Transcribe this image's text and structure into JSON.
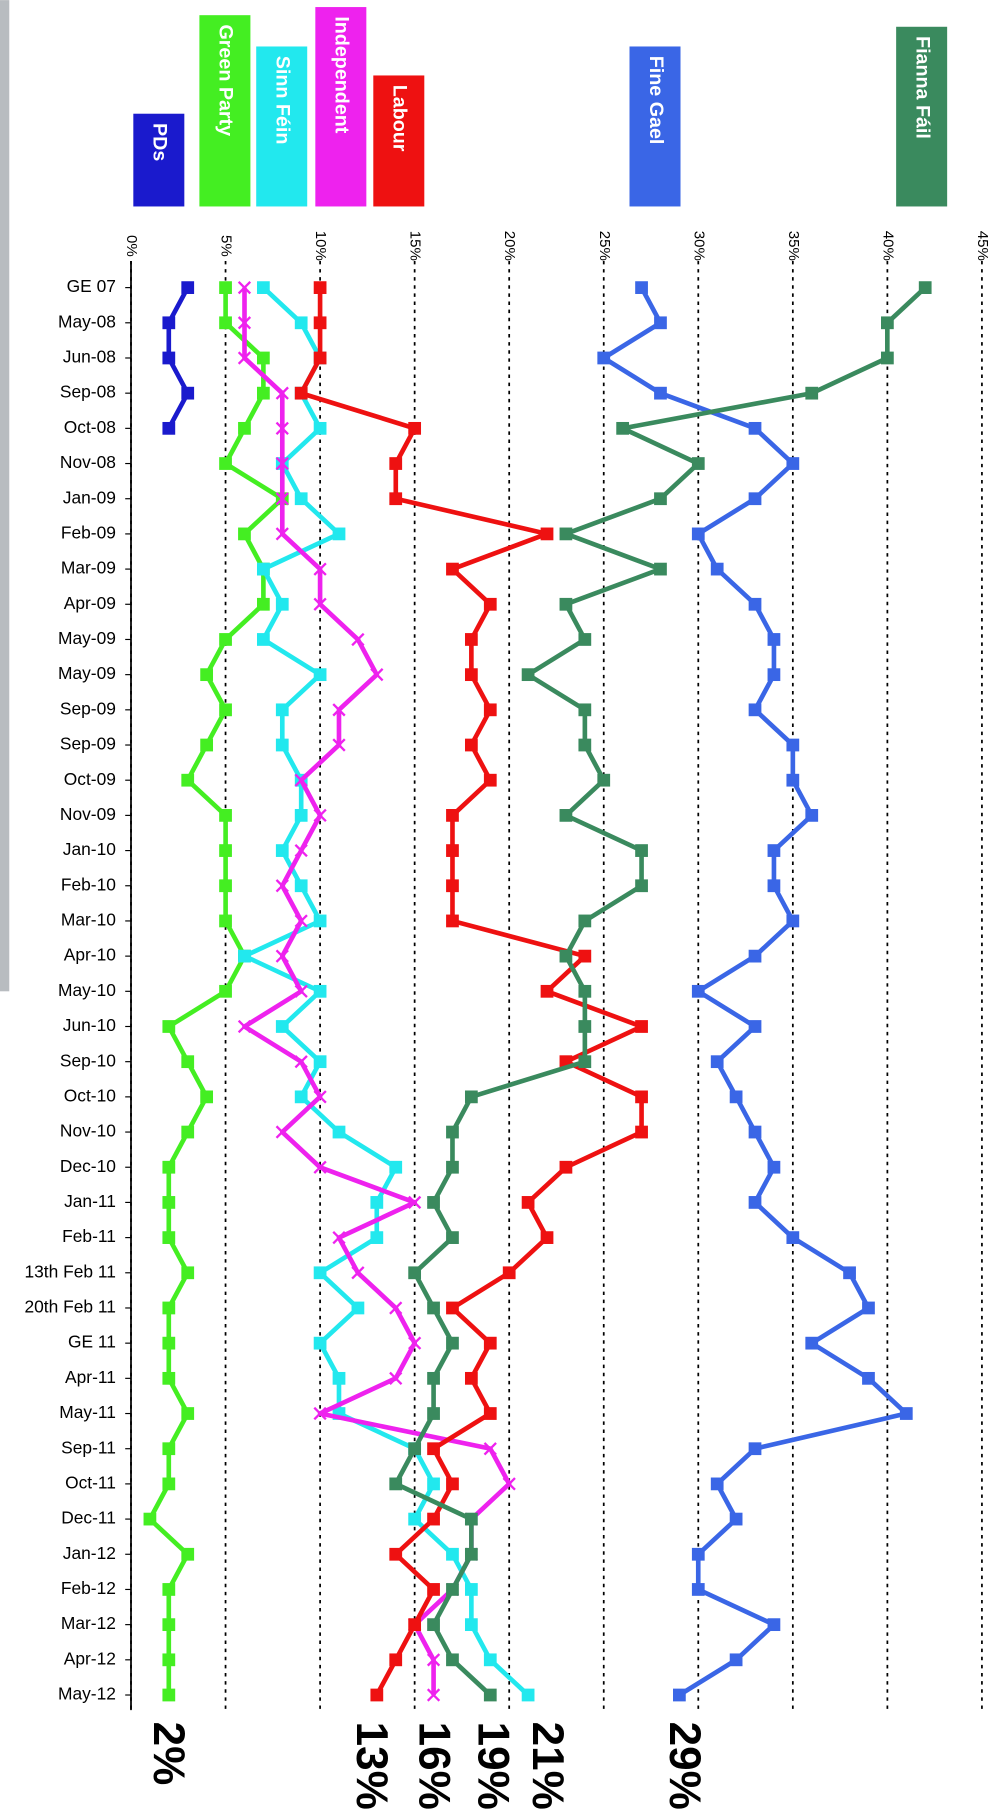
{
  "chart_data": {
    "type": "line",
    "categories": [
      "GE 07",
      "May-08",
      "Jun-08",
      "Sep-08",
      "Oct-08",
      "Nov-08",
      "Jan-09",
      "Feb-09",
      "Mar-09",
      "Apr-09",
      "May-09",
      "May-09",
      "Sep-09",
      "Sep-09",
      "Oct-09",
      "Nov-09",
      "Jan-10",
      "Feb-10",
      "Mar-10",
      "Apr-10",
      "May-10",
      "Jun-10",
      "Sep-10",
      "Oct-10",
      "Nov-10",
      "Dec-10",
      "Jan-11",
      "Feb-11",
      "13th Feb 11",
      "20th Feb 11",
      "GE 11",
      "Apr-11",
      "May-11",
      "Sep-11",
      "Oct-11",
      "Dec-11",
      "Jan-12",
      "Feb-12",
      "Mar-12",
      "Apr-12",
      "May-12"
    ],
    "series": [
      {
        "name": "PDs",
        "color": "#1a1acd",
        "marker": "square",
        "values": [
          3,
          2,
          2,
          3,
          2,
          null,
          null,
          null,
          null,
          null,
          null,
          null,
          null,
          null,
          null,
          null,
          null,
          null,
          null,
          null,
          null,
          null,
          null,
          null,
          null,
          null,
          null,
          null,
          null,
          null,
          null,
          null,
          null,
          null,
          null,
          null,
          null,
          null,
          null,
          null,
          null
        ]
      },
      {
        "name": "Green Party",
        "color": "#44ee22",
        "marker": "square",
        "values": [
          5,
          5,
          7,
          7,
          6,
          5,
          8,
          6,
          7,
          7,
          5,
          4,
          5,
          4,
          3,
          5,
          5,
          5,
          5,
          6,
          5,
          2,
          3,
          4,
          3,
          2,
          2,
          2,
          3,
          2,
          2,
          2,
          3,
          2,
          2,
          1,
          3,
          2,
          2,
          2,
          2
        ]
      },
      {
        "name": "Sinn Féin",
        "color": "#22e8ee",
        "marker": "square",
        "values": [
          7,
          9,
          10,
          9,
          10,
          8,
          9,
          11,
          7,
          8,
          7,
          10,
          8,
          8,
          9,
          9,
          8,
          9,
          10,
          6,
          10,
          8,
          10,
          9,
          11,
          14,
          13,
          13,
          10,
          12,
          10,
          11,
          11,
          15,
          16,
          15,
          17,
          18,
          18,
          19,
          21
        ]
      },
      {
        "name": "Independent",
        "color": "#ee22ee",
        "marker": "cross",
        "values": [
          6,
          6,
          6,
          8,
          8,
          8,
          8,
          8,
          10,
          10,
          12,
          13,
          11,
          11,
          9,
          10,
          9,
          8,
          9,
          8,
          9,
          6,
          9,
          10,
          8,
          10,
          15,
          11,
          12,
          14,
          15,
          14,
          10,
          19,
          20,
          18,
          18,
          17,
          15,
          16,
          16
        ]
      },
      {
        "name": "Labour",
        "color": "#ee1111",
        "marker": "square",
        "values": [
          10,
          10,
          10,
          9,
          15,
          14,
          14,
          22,
          17,
          19,
          18,
          18,
          19,
          18,
          19,
          17,
          17,
          17,
          17,
          24,
          22,
          27,
          23,
          27,
          27,
          23,
          21,
          22,
          20,
          17,
          19,
          18,
          19,
          16,
          17,
          16,
          14,
          16,
          15,
          14,
          13
        ]
      },
      {
        "name": "Fine Gael",
        "color": "#3a66e6",
        "marker": "square",
        "values": [
          27,
          28,
          25,
          28,
          33,
          35,
          33,
          30,
          31,
          33,
          34,
          34,
          33,
          35,
          35,
          36,
          34,
          34,
          35,
          33,
          30,
          33,
          31,
          32,
          33,
          34,
          33,
          35,
          38,
          39,
          36,
          39,
          41,
          33,
          31,
          32,
          30,
          30,
          34,
          32,
          29
        ]
      },
      {
        "name": "Fianna Fáil",
        "color": "#3a8a5e",
        "marker": "square",
        "values": [
          42,
          40,
          40,
          36,
          26,
          30,
          28,
          23,
          28,
          23,
          24,
          21,
          24,
          24,
          25,
          23,
          27,
          27,
          24,
          23,
          24,
          24,
          24,
          18,
          17,
          17,
          16,
          17,
          15,
          16,
          17,
          16,
          16,
          15,
          14,
          18,
          18,
          17,
          16,
          17,
          19
        ]
      }
    ],
    "xlim": [
      0,
      45
    ],
    "xticks": [
      {
        "value": 0,
        "label": "0%"
      },
      {
        "value": 5,
        "label": "5%"
      },
      {
        "value": 10,
        "label": "10%"
      },
      {
        "value": 15,
        "label": "15%"
      },
      {
        "value": 20,
        "label": "20%"
      },
      {
        "value": 25,
        "label": "25%"
      },
      {
        "value": 30,
        "label": "30%"
      },
      {
        "value": 35,
        "label": "35%"
      },
      {
        "value": 40,
        "label": "40%"
      },
      {
        "value": 45,
        "label": "45%"
      }
    ],
    "grid": true,
    "annotations": [
      "2%",
      "13%",
      "16%",
      "19%",
      "21%",
      "29%"
    ]
  }
}
